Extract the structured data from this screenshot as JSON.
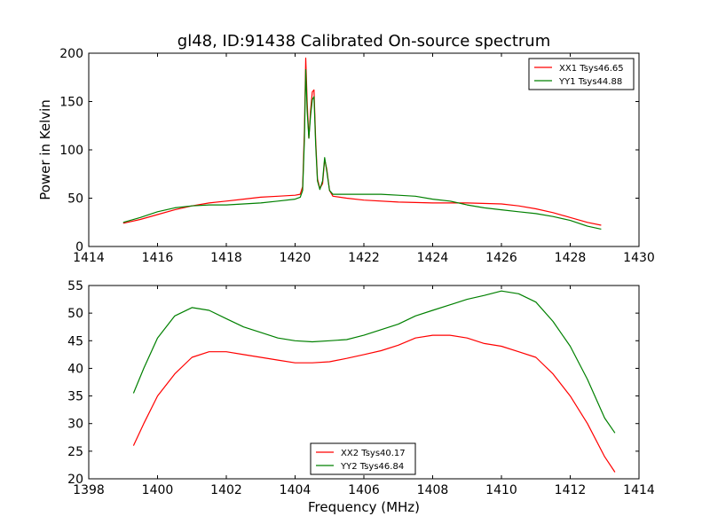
{
  "chart_data": [
    {
      "type": "line",
      "title": "gl48, ID:91438 Calibrated On-source spectrum",
      "xlabel": "",
      "ylabel": "Power in Kelvin",
      "xlim": [
        1414,
        1430
      ],
      "ylim": [
        0,
        200
      ],
      "xticks": [
        "1414",
        "1416",
        "1418",
        "1420",
        "1422",
        "1424",
        "1426",
        "1428",
        "1430"
      ],
      "yticks": [
        "0",
        "50",
        "100",
        "150",
        "200"
      ],
      "grid": false,
      "legend_position": "upper right",
      "series": [
        {
          "name": "XX1 Tsys46.65",
          "color": "#ff0000",
          "points": [
            [
              1415.0,
              24
            ],
            [
              1415.5,
              28
            ],
            [
              1416.0,
              33
            ],
            [
              1416.5,
              38
            ],
            [
              1417.0,
              42
            ],
            [
              1417.5,
              45
            ],
            [
              1418.0,
              47
            ],
            [
              1418.5,
              49
            ],
            [
              1419.0,
              51
            ],
            [
              1419.5,
              52
            ],
            [
              1420.0,
              53
            ],
            [
              1420.15,
              54
            ],
            [
              1420.22,
              62
            ],
            [
              1420.27,
              120
            ],
            [
              1420.31,
              195
            ],
            [
              1420.35,
              150
            ],
            [
              1420.4,
              112
            ],
            [
              1420.45,
              140
            ],
            [
              1420.5,
              160
            ],
            [
              1420.55,
              162
            ],
            [
              1420.6,
              110
            ],
            [
              1420.65,
              70
            ],
            [
              1420.72,
              60
            ],
            [
              1420.8,
              65
            ],
            [
              1420.86,
              90
            ],
            [
              1420.92,
              80
            ],
            [
              1421.0,
              58
            ],
            [
              1421.1,
              52
            ],
            [
              1421.5,
              50
            ],
            [
              1422.0,
              48
            ],
            [
              1423.0,
              46
            ],
            [
              1424.0,
              45
            ],
            [
              1425.0,
              45
            ],
            [
              1426.0,
              44
            ],
            [
              1426.5,
              42
            ],
            [
              1427.0,
              39
            ],
            [
              1427.5,
              35
            ],
            [
              1428.0,
              30
            ],
            [
              1428.5,
              25
            ],
            [
              1428.9,
              22
            ]
          ]
        },
        {
          "name": "YY1 Tsys44.88",
          "color": "#008000",
          "points": [
            [
              1415.0,
              25
            ],
            [
              1415.5,
              30
            ],
            [
              1416.0,
              36
            ],
            [
              1416.5,
              40
            ],
            [
              1417.0,
              42
            ],
            [
              1417.5,
              43
            ],
            [
              1418.0,
              43
            ],
            [
              1418.5,
              44
            ],
            [
              1419.0,
              45
            ],
            [
              1419.5,
              47
            ],
            [
              1420.0,
              49
            ],
            [
              1420.15,
              51
            ],
            [
              1420.22,
              58
            ],
            [
              1420.27,
              110
            ],
            [
              1420.31,
              183
            ],
            [
              1420.35,
              140
            ],
            [
              1420.4,
              112
            ],
            [
              1420.45,
              135
            ],
            [
              1420.5,
              152
            ],
            [
              1420.55,
              155
            ],
            [
              1420.6,
              105
            ],
            [
              1420.65,
              68
            ],
            [
              1420.72,
              59
            ],
            [
              1420.8,
              68
            ],
            [
              1420.86,
              92
            ],
            [
              1420.92,
              78
            ],
            [
              1421.0,
              58
            ],
            [
              1421.1,
              54
            ],
            [
              1421.5,
              54
            ],
            [
              1422.0,
              54
            ],
            [
              1422.5,
              54
            ],
            [
              1423.0,
              53
            ],
            [
              1423.5,
              52
            ],
            [
              1424.0,
              49
            ],
            [
              1424.5,
              47
            ],
            [
              1425.0,
              43
            ],
            [
              1425.5,
              40
            ],
            [
              1426.0,
              38
            ],
            [
              1426.5,
              36
            ],
            [
              1427.0,
              34
            ],
            [
              1427.5,
              31
            ],
            [
              1428.0,
              27
            ],
            [
              1428.5,
              21
            ],
            [
              1428.9,
              18
            ]
          ]
        }
      ]
    },
    {
      "type": "line",
      "title": "",
      "xlabel": "Frequency (MHz)",
      "ylabel": "",
      "xlim": [
        1398,
        1414
      ],
      "ylim": [
        20,
        55
      ],
      "xticks": [
        "1398",
        "1400",
        "1402",
        "1404",
        "1406",
        "1408",
        "1410",
        "1412",
        "1414"
      ],
      "yticks": [
        "20",
        "25",
        "30",
        "35",
        "40",
        "45",
        "50",
        "55"
      ],
      "grid": false,
      "legend_position": "lower center",
      "series": [
        {
          "name": "XX2 Tsys40.17",
          "color": "#ff0000",
          "points": [
            [
              1399.3,
              26
            ],
            [
              1399.6,
              30
            ],
            [
              1400.0,
              35
            ],
            [
              1400.5,
              39
            ],
            [
              1401.0,
              42
            ],
            [
              1401.5,
              43
            ],
            [
              1402.0,
              43
            ],
            [
              1402.5,
              42.5
            ],
            [
              1403.0,
              42
            ],
            [
              1403.5,
              41.5
            ],
            [
              1404.0,
              41
            ],
            [
              1404.5,
              41
            ],
            [
              1405.0,
              41.2
            ],
            [
              1405.5,
              41.8
            ],
            [
              1406.0,
              42.5
            ],
            [
              1406.5,
              43.2
            ],
            [
              1407.0,
              44.2
            ],
            [
              1407.5,
              45.5
            ],
            [
              1408.0,
              46
            ],
            [
              1408.5,
              46
            ],
            [
              1409.0,
              45.5
            ],
            [
              1409.5,
              44.5
            ],
            [
              1410.0,
              44
            ],
            [
              1410.5,
              43
            ],
            [
              1411.0,
              42
            ],
            [
              1411.5,
              39
            ],
            [
              1412.0,
              35
            ],
            [
              1412.5,
              30
            ],
            [
              1413.0,
              24
            ],
            [
              1413.3,
              21.2
            ]
          ]
        },
        {
          "name": "YY2 Tsys46.84",
          "color": "#008000",
          "points": [
            [
              1399.3,
              35.5
            ],
            [
              1399.6,
              40
            ],
            [
              1400.0,
              45.5
            ],
            [
              1400.5,
              49.5
            ],
            [
              1401.0,
              51
            ],
            [
              1401.5,
              50.5
            ],
            [
              1402.0,
              49
            ],
            [
              1402.5,
              47.5
            ],
            [
              1403.0,
              46.5
            ],
            [
              1403.5,
              45.5
            ],
            [
              1404.0,
              45
            ],
            [
              1404.5,
              44.8
            ],
            [
              1405.0,
              45
            ],
            [
              1405.5,
              45.2
            ],
            [
              1406.0,
              46
            ],
            [
              1406.5,
              47
            ],
            [
              1407.0,
              48
            ],
            [
              1407.5,
              49.5
            ],
            [
              1408.0,
              50.5
            ],
            [
              1408.5,
              51.5
            ],
            [
              1409.0,
              52.5
            ],
            [
              1409.5,
              53.2
            ],
            [
              1410.0,
              54
            ],
            [
              1410.5,
              53.5
            ],
            [
              1411.0,
              52
            ],
            [
              1411.5,
              48.5
            ],
            [
              1412.0,
              44
            ],
            [
              1412.5,
              38
            ],
            [
              1413.0,
              31
            ],
            [
              1413.3,
              28.3
            ]
          ]
        }
      ]
    }
  ]
}
